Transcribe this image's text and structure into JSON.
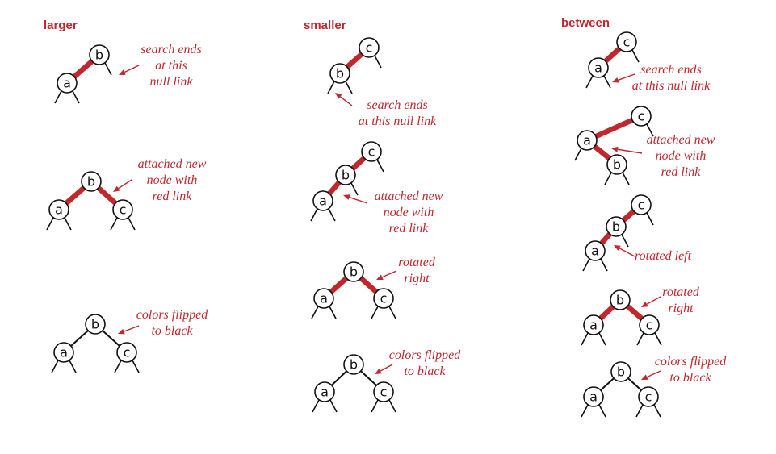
{
  "columns": [
    {
      "id": "larger",
      "heading": "larger"
    },
    {
      "id": "smaller",
      "heading": "smaller"
    },
    {
      "id": "between",
      "heading": "between"
    }
  ],
  "node_labels": {
    "a": "a",
    "b": "b",
    "c": "c"
  },
  "annotations": {
    "larger_step1": [
      "search ends",
      "at this",
      "null link"
    ],
    "larger_step2": [
      "attached new",
      "node with",
      "red link"
    ],
    "larger_step3": [
      "colors flipped",
      "to black"
    ],
    "smaller_step1": [
      "search ends",
      "at this null link"
    ],
    "smaller_step2": [
      "attached new",
      "node with",
      "red link"
    ],
    "smaller_step3": [
      "rotated",
      "right"
    ],
    "smaller_step4": [
      "colors flipped",
      "to black"
    ],
    "between_step1": [
      "search ends",
      "at this null link"
    ],
    "between_step2": [
      "attached new",
      "node with",
      "red link"
    ],
    "between_step3": [
      "rotated left"
    ],
    "between_step4": [
      "rotated",
      "right"
    ],
    "between_step5": [
      "colors flipped",
      "to black"
    ]
  },
  "colors": {
    "red_link": "#c1272d",
    "black_link": "#111111",
    "accent_text": "#c1272d"
  }
}
